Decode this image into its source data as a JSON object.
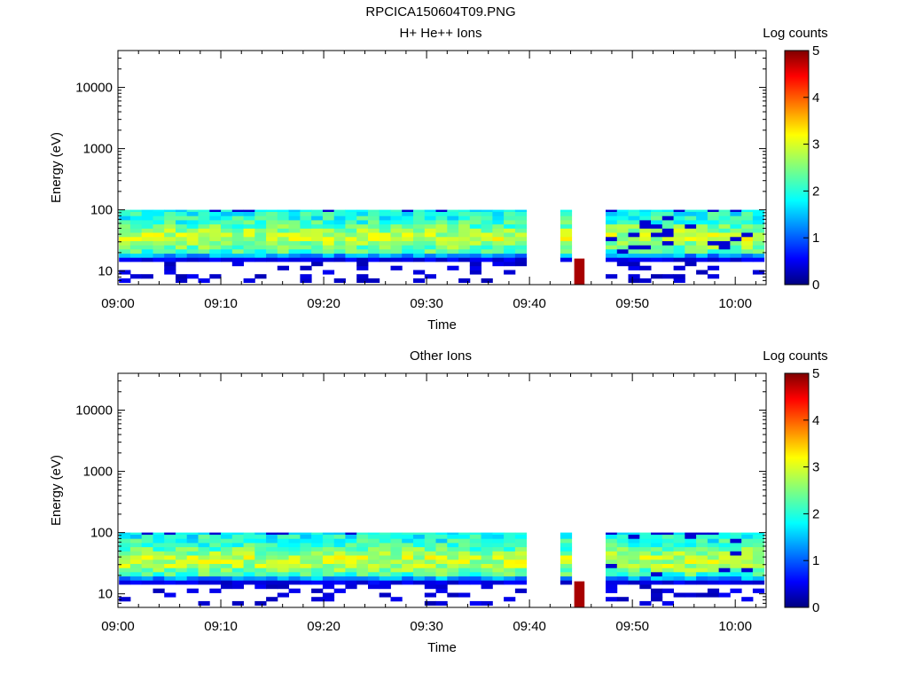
{
  "figure_title": "RPCICA150604T09.PNG",
  "chart_data": [
    {
      "type": "heatmap",
      "title": "H+ He++ Ions",
      "xlabel": "Time",
      "ylabel": "Energy (eV)",
      "x_scale": "time",
      "y_scale": "log",
      "xlim": [
        "09:00",
        "10:03"
      ],
      "ylim": [
        6,
        40000
      ],
      "x_ticks": [
        "09:00",
        "09:10",
        "09:20",
        "09:30",
        "09:40",
        "09:50",
        "10:00"
      ],
      "y_ticks": [
        "10",
        "100",
        "1000",
        "10000"
      ],
      "colorbar": {
        "label": "Log counts",
        "range": [
          0,
          5
        ],
        "ticks": [
          "0",
          "1",
          "2",
          "3",
          "4",
          "5"
        ]
      },
      "data_gaps": [
        [
          "09:40",
          "09:43"
        ],
        [
          "09:44",
          "09:47"
        ]
      ],
      "energy_band_ev": [
        6,
        100
      ],
      "typical_log_counts": {
        "core_20_to_100_ev": 2.5,
        "peak": 3.5,
        "edge_below_16_ev": 0.5
      },
      "notable": [
        {
          "time": "09:44",
          "energy_range_ev": [
            6,
            16
          ],
          "log_counts": 4.8
        }
      ]
    },
    {
      "type": "heatmap",
      "title": "Other Ions",
      "xlabel": "Time",
      "ylabel": "Energy (eV)",
      "x_scale": "time",
      "y_scale": "log",
      "xlim": [
        "09:00",
        "10:03"
      ],
      "ylim": [
        6,
        40000
      ],
      "x_ticks": [
        "09:00",
        "09:10",
        "09:20",
        "09:30",
        "09:40",
        "09:50",
        "10:00"
      ],
      "y_ticks": [
        "10",
        "100",
        "1000",
        "10000"
      ],
      "colorbar": {
        "label": "Log counts",
        "range": [
          0,
          5
        ],
        "ticks": [
          "0",
          "1",
          "2",
          "3",
          "4",
          "5"
        ]
      },
      "data_gaps": [
        [
          "09:40",
          "09:43"
        ],
        [
          "09:44",
          "09:47"
        ]
      ],
      "energy_band_ev": [
        6,
        100
      ],
      "typical_log_counts": {
        "core_20_to_100_ev": 2.4,
        "peak": 3.4,
        "edge_below_16_ev": 0.4
      },
      "notable": [
        {
          "time": "09:44",
          "energy_range_ev": [
            6,
            16
          ],
          "log_counts": 4.8
        }
      ]
    }
  ]
}
